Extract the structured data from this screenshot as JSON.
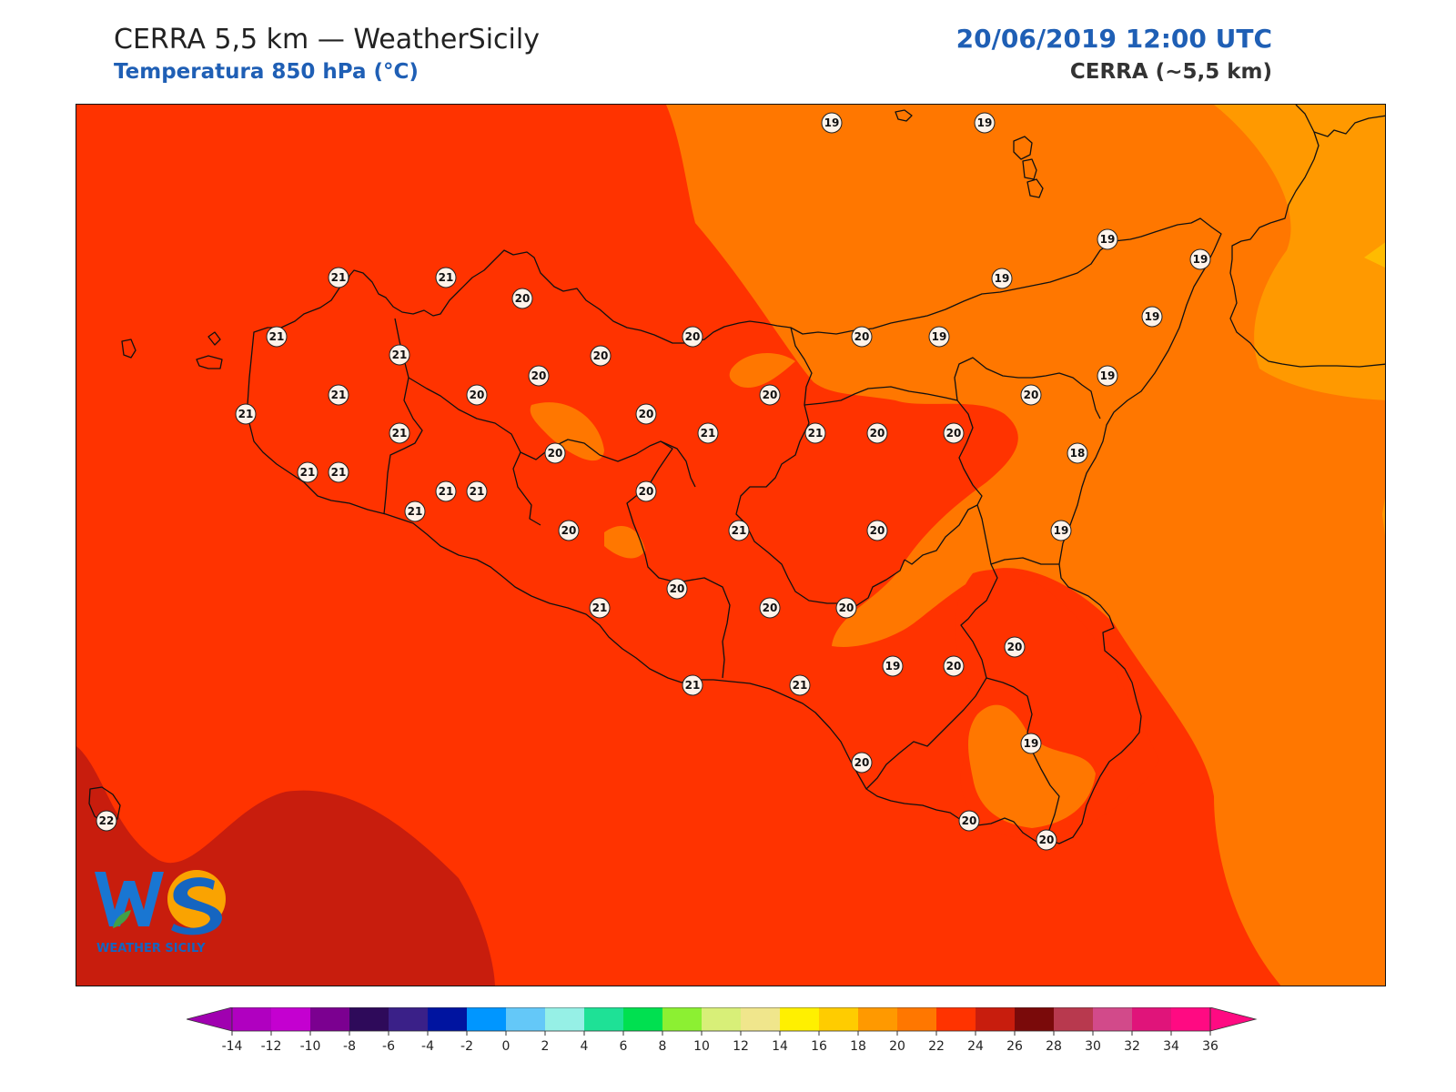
{
  "header": {
    "title": "CERRA 5,5 km — WeatherSicily",
    "subtitle": "Temperatura 850 hPa (°C)",
    "datetime": "20/06/2019 12:00 UTC",
    "model": "CERRA (~5,5 km)"
  },
  "logo": {
    "letters": "WS",
    "text": "WEATHER SICILY"
  },
  "map": {
    "variable": "Temperatura 850 hPa",
    "unit": "°C",
    "field_colors": {
      "dark_red": "#c81d0d",
      "red_orange": "#ff3300",
      "orange": "#ff7700",
      "light_orange": "#ff9900",
      "yellow_orange": "#ffbb00"
    },
    "stations": [
      {
        "value": "19"
      },
      {
        "value": "19"
      },
      {
        "value": "21"
      },
      {
        "value": "21"
      },
      {
        "value": "20"
      },
      {
        "value": "21"
      },
      {
        "value": "21"
      },
      {
        "value": "20"
      },
      {
        "value": "20"
      },
      {
        "value": "20"
      },
      {
        "value": "19"
      },
      {
        "value": "19"
      },
      {
        "value": "19"
      },
      {
        "value": "19"
      },
      {
        "value": "19"
      },
      {
        "value": "21"
      },
      {
        "value": "21"
      },
      {
        "value": "20"
      },
      {
        "value": "20"
      },
      {
        "value": "20"
      },
      {
        "value": "20"
      },
      {
        "value": "19"
      },
      {
        "value": "21"
      },
      {
        "value": "21"
      },
      {
        "value": "20"
      },
      {
        "value": "21"
      },
      {
        "value": "21"
      },
      {
        "value": "20"
      },
      {
        "value": "18"
      },
      {
        "value": "21"
      },
      {
        "value": "21"
      },
      {
        "value": "20"
      },
      {
        "value": "21"
      },
      {
        "value": "21"
      },
      {
        "value": "20"
      },
      {
        "value": "20"
      },
      {
        "value": "19"
      },
      {
        "value": "21"
      },
      {
        "value": "20"
      },
      {
        "value": "20"
      },
      {
        "value": "20"
      },
      {
        "value": "20"
      },
      {
        "value": "20"
      },
      {
        "value": "21"
      },
      {
        "value": "21"
      },
      {
        "value": "19"
      },
      {
        "value": "20"
      },
      {
        "value": "20"
      },
      {
        "value": "21"
      },
      {
        "value": "20"
      },
      {
        "value": "19"
      },
      {
        "value": "22"
      },
      {
        "value": "20"
      },
      {
        "value": "20"
      }
    ]
  },
  "colorbar": {
    "ticks": [
      "-14",
      "-12",
      "-10",
      "-8",
      "-6",
      "-4",
      "-2",
      "0",
      "2",
      "4",
      "6",
      "8",
      "10",
      "12",
      "14",
      "16",
      "18",
      "20",
      "22",
      "24",
      "26",
      "28",
      "30",
      "32",
      "34",
      "36"
    ],
    "colors": [
      "#b000c0",
      "#c400d0",
      "#7b0090",
      "#2e0a5a",
      "#3a2088",
      "#0014a0",
      "#0096ff",
      "#64c8f8",
      "#96f0e6",
      "#1ee196",
      "#00e050",
      "#8cf032",
      "#d8ef78",
      "#f0e68c",
      "#fff000",
      "#ffcc00",
      "#ff9900",
      "#ff7700",
      "#ff3300",
      "#c81d0d",
      "#7a0a0a",
      "#b8394e",
      "#d24a8a",
      "#e0147a",
      "#ff0a82"
    ],
    "under_color": "#a000b0",
    "over_color": "#ff0a82"
  }
}
